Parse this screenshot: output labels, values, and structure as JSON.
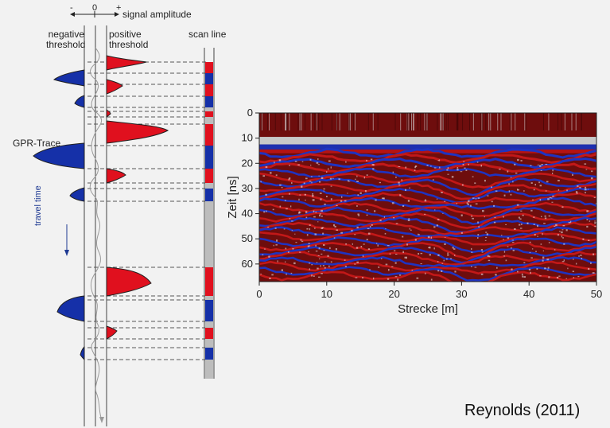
{
  "diagram": {
    "amplitude_minus": "-",
    "amplitude_zero": "0",
    "amplitude_plus": "+",
    "signal_amplitude": "signal amplitude",
    "negative_threshold": [
      "negative",
      "threshold"
    ],
    "positive_threshold": [
      "positive",
      "threshold"
    ],
    "scan_line": "scan line",
    "gpr_trace": "GPR-Trace",
    "travel_time": "travel time",
    "colors": {
      "positive": "#e0101e",
      "negative": "#1530a8",
      "neutral": "#bdbdbd"
    }
  },
  "radargram": {
    "y_ticks": [
      "0",
      "10",
      "20",
      "30",
      "40",
      "50",
      "60"
    ],
    "x_ticks": [
      "0",
      "10",
      "20",
      "30",
      "40",
      "50"
    ],
    "ylabel": "Zeit [ns]",
    "xlabel": "Strecke [m]",
    "xlim": [
      0,
      50
    ],
    "ylim": [
      0,
      67
    ]
  },
  "credit": "Reynolds (2011)"
}
